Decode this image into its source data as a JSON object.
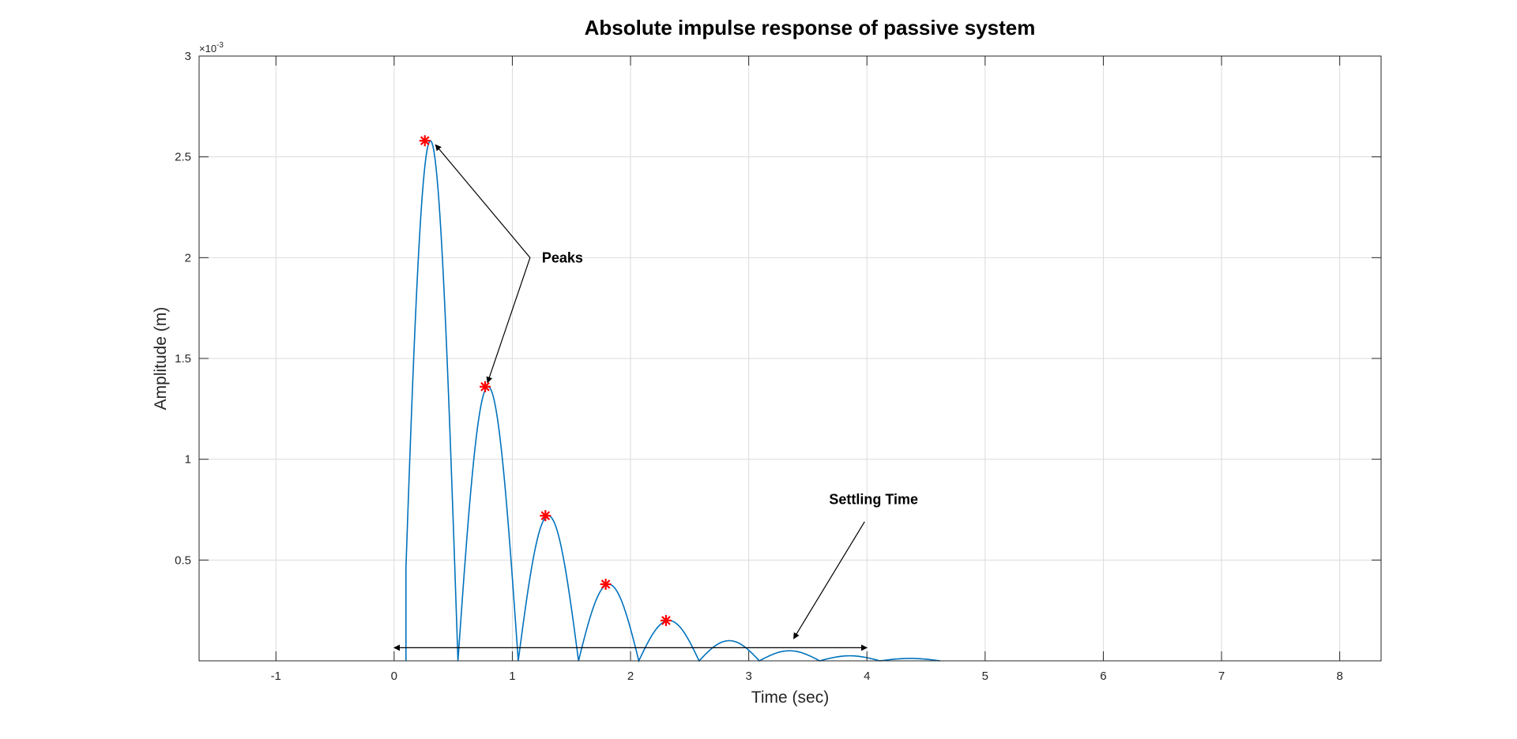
{
  "chart_data": {
    "type": "line",
    "title": "Absolute impulse response of passive system",
    "xlabel": "Time (sec)",
    "ylabel": "Amplitude (m)",
    "y_exponent": "×10",
    "y_exponent_power": "-3",
    "xlim": [
      -1.65,
      8.35
    ],
    "ylim": [
      0,
      3.0
    ],
    "x_ticks": [
      -1,
      0,
      1,
      2,
      3,
      4,
      5,
      6,
      7,
      8
    ],
    "x_tick_labels": [
      "-1",
      "0",
      "1",
      "2",
      "3",
      "4",
      "5",
      "6",
      "7",
      "8"
    ],
    "y_ticks": [
      0.5,
      1,
      1.5,
      2,
      2.5,
      3
    ],
    "y_tick_labels": [
      "0.5",
      "1",
      "1.5",
      "2",
      "2.5",
      "3"
    ],
    "grid": true,
    "series": [
      {
        "color": "#0072BD",
        "start_x": 0.1,
        "lobes": [
          {
            "start": 0.1,
            "end": 0.54,
            "peak_x": 0.26,
            "peak": 2.58
          },
          {
            "start": 0.54,
            "end": 1.05,
            "peak_x": 0.77,
            "peak": 1.36
          },
          {
            "start": 1.05,
            "end": 1.56,
            "peak_x": 1.28,
            "peak": 0.72
          },
          {
            "start": 1.56,
            "end": 2.07,
            "peak_x": 1.79,
            "peak": 0.38
          },
          {
            "start": 2.07,
            "end": 2.58,
            "peak_x": 2.3,
            "peak": 0.2
          },
          {
            "start": 2.58,
            "end": 3.09,
            "peak_x": 2.81,
            "peak": 0.1
          },
          {
            "start": 3.09,
            "end": 3.6,
            "peak_x": 3.32,
            "peak": 0.05
          },
          {
            "start": 3.6,
            "end": 4.11,
            "peak_x": 3.83,
            "peak": 0.025
          },
          {
            "start": 4.11,
            "end": 4.62,
            "peak_x": 4.34,
            "peak": 0.012
          }
        ]
      }
    ],
    "peaks": {
      "color": "#FF0000",
      "x": [
        0.26,
        0.77,
        1.28,
        1.79,
        2.3
      ],
      "y": [
        2.58,
        1.36,
        0.72,
        0.38,
        0.2
      ]
    },
    "annotations": {
      "peaks_label": "Peaks",
      "peaks_label_pos": {
        "x": 1.25,
        "y": 2.0
      },
      "peaks_arrows": [
        {
          "from": {
            "x": 1.15,
            "y": 2.0
          },
          "to": {
            "x": 0.35,
            "y": 2.56
          }
        },
        {
          "from": {
            "x": 1.15,
            "y": 2.0
          },
          "to": {
            "x": 0.79,
            "y": 1.38
          }
        }
      ],
      "settling_label": "Settling Time",
      "settling_label_pos": {
        "x": 3.68,
        "y": 0.8
      },
      "settling_arrow": {
        "from": {
          "x": 3.98,
          "y": 0.69
        },
        "to": {
          "x": 3.38,
          "y": 0.11
        }
      },
      "settling_span": {
        "x1": 0.0,
        "x2": 4.0,
        "y": 0.065
      }
    }
  }
}
